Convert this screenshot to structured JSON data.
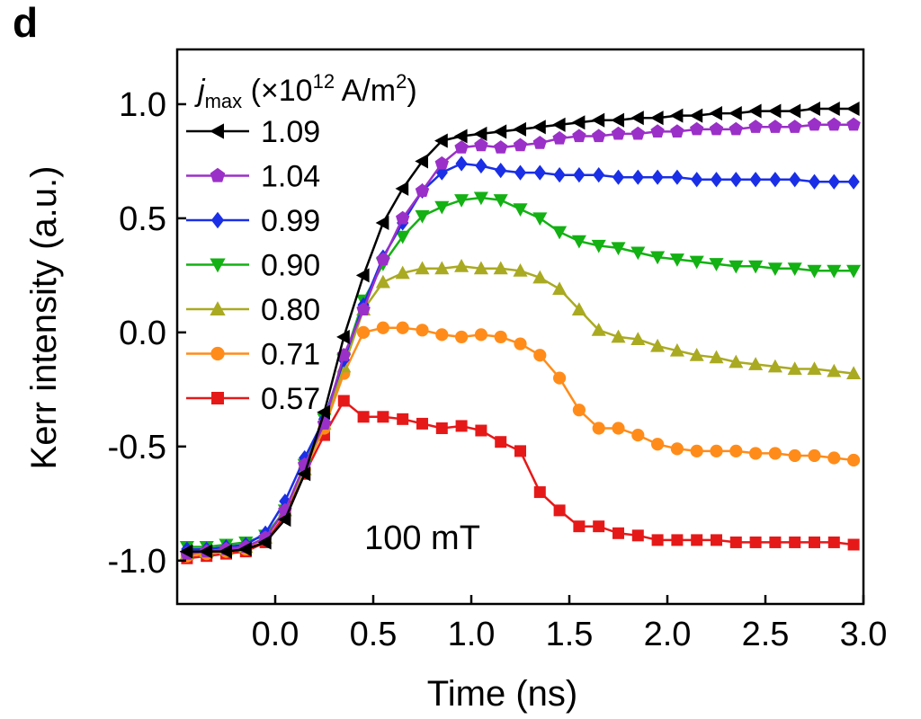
{
  "panel_label": "d",
  "chart_data": {
    "type": "line",
    "title": "",
    "xlabel": "Time (ns)",
    "ylabel": "Kerr intensity (a.u.)",
    "xlim": [
      -0.5,
      3.0
    ],
    "ylim": [
      -1.19,
      1.24
    ],
    "xticks": [
      0.0,
      0.5,
      1.0,
      1.5,
      2.0,
      2.5,
      3.0
    ],
    "xtick_labels": [
      "0.0",
      "0.5",
      "1.0",
      "1.5",
      "2.0",
      "2.5",
      "3.0"
    ],
    "yticks": [
      -1.0,
      -0.5,
      0.0,
      0.5,
      1.0
    ],
    "ytick_labels": [
      "-1.0",
      "-0.5",
      "0.0",
      "0.5",
      "1.0"
    ],
    "grid": false,
    "legend": {
      "placement": "top-left",
      "title_italic": "j",
      "title_sub": "max",
      "title_rest": " (×10",
      "title_sup": "12",
      "title_unit": " A/m",
      "title_unit_sup": "2",
      "title_close": ")"
    },
    "annotation": "100 mT",
    "x": [
      -0.45,
      -0.35,
      -0.25,
      -0.15,
      -0.05,
      0.05,
      0.15,
      0.25,
      0.35,
      0.45,
      0.55,
      0.65,
      0.75,
      0.85,
      0.95,
      1.05,
      1.15,
      1.25,
      1.35,
      1.45,
      1.55,
      1.65,
      1.75,
      1.85,
      1.95,
      2.05,
      2.15,
      2.25,
      2.35,
      2.45,
      2.55,
      2.65,
      2.75,
      2.85,
      2.95
    ],
    "series": [
      {
        "name": "1.09",
        "color": "#000000",
        "marker": "triangle-left",
        "values": [
          -0.96,
          -0.96,
          -0.96,
          -0.95,
          -0.92,
          -0.82,
          -0.62,
          -0.35,
          -0.02,
          0.25,
          0.48,
          0.63,
          0.75,
          0.84,
          0.86,
          0.87,
          0.88,
          0.89,
          0.9,
          0.91,
          0.92,
          0.93,
          0.93,
          0.94,
          0.94,
          0.95,
          0.95,
          0.96,
          0.96,
          0.97,
          0.97,
          0.97,
          0.98,
          0.98,
          0.98
        ]
      },
      {
        "name": "1.04",
        "color": "#9b30c8",
        "marker": "pentagon",
        "values": [
          -0.97,
          -0.96,
          -0.95,
          -0.94,
          -0.9,
          -0.78,
          -0.58,
          -0.4,
          -0.1,
          0.1,
          0.32,
          0.5,
          0.62,
          0.74,
          0.81,
          0.82,
          0.81,
          0.82,
          0.83,
          0.85,
          0.86,
          0.86,
          0.87,
          0.87,
          0.88,
          0.88,
          0.89,
          0.89,
          0.89,
          0.9,
          0.9,
          0.9,
          0.91,
          0.91,
          0.91
        ]
      },
      {
        "name": "0.99",
        "color": "#1a2fe6",
        "marker": "diamond",
        "values": [
          -0.95,
          -0.95,
          -0.94,
          -0.93,
          -0.88,
          -0.74,
          -0.55,
          -0.38,
          -0.12,
          0.12,
          0.33,
          0.48,
          0.62,
          0.7,
          0.74,
          0.73,
          0.71,
          0.7,
          0.7,
          0.69,
          0.69,
          0.69,
          0.68,
          0.68,
          0.68,
          0.68,
          0.67,
          0.67,
          0.67,
          0.67,
          0.67,
          0.67,
          0.66,
          0.66,
          0.66
        ]
      },
      {
        "name": "0.90",
        "color": "#13b113",
        "marker": "triangle-down",
        "values": [
          -0.94,
          -0.94,
          -0.93,
          -0.92,
          -0.89,
          -0.78,
          -0.58,
          -0.38,
          -0.12,
          0.14,
          0.3,
          0.42,
          0.51,
          0.55,
          0.58,
          0.59,
          0.58,
          0.54,
          0.5,
          0.44,
          0.4,
          0.38,
          0.37,
          0.35,
          0.33,
          0.32,
          0.31,
          0.3,
          0.29,
          0.29,
          0.28,
          0.28,
          0.27,
          0.27,
          0.27
        ]
      },
      {
        "name": "0.80",
        "color": "#aaaa22",
        "marker": "triangle-up",
        "values": [
          -0.97,
          -0.96,
          -0.95,
          -0.94,
          -0.9,
          -0.78,
          -0.6,
          -0.4,
          -0.15,
          0.1,
          0.22,
          0.26,
          0.28,
          0.28,
          0.29,
          0.28,
          0.28,
          0.27,
          0.24,
          0.19,
          0.1,
          0.01,
          -0.02,
          -0.03,
          -0.06,
          -0.08,
          -0.1,
          -0.11,
          -0.13,
          -0.14,
          -0.15,
          -0.16,
          -0.16,
          -0.17,
          -0.18
        ]
      },
      {
        "name": "0.71",
        "color": "#ff8c1a",
        "marker": "circle",
        "values": [
          -0.98,
          -0.97,
          -0.96,
          -0.95,
          -0.9,
          -0.78,
          -0.6,
          -0.42,
          -0.18,
          0.0,
          0.02,
          0.02,
          0.01,
          -0.01,
          -0.02,
          -0.01,
          -0.02,
          -0.05,
          -0.1,
          -0.2,
          -0.34,
          -0.42,
          -0.42,
          -0.45,
          -0.49,
          -0.51,
          -0.52,
          -0.52,
          -0.52,
          -0.53,
          -0.53,
          -0.54,
          -0.54,
          -0.55,
          -0.56
        ]
      },
      {
        "name": "0.57",
        "color": "#e61919",
        "marker": "square",
        "values": [
          -0.99,
          -0.98,
          -0.97,
          -0.96,
          -0.92,
          -0.8,
          -0.62,
          -0.45,
          -0.3,
          -0.37,
          -0.37,
          -0.38,
          -0.4,
          -0.42,
          -0.41,
          -0.43,
          -0.48,
          -0.52,
          -0.7,
          -0.78,
          -0.85,
          -0.85,
          -0.88,
          -0.89,
          -0.91,
          -0.91,
          -0.91,
          -0.91,
          -0.92,
          -0.92,
          -0.92,
          -0.92,
          -0.92,
          -0.92,
          -0.93
        ]
      }
    ]
  }
}
